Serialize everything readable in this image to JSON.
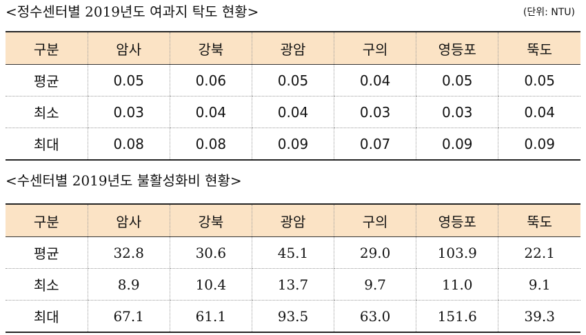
{
  "section1": {
    "title": "<정수센터별 2019년도 여과지 탁도 현황>",
    "unit": "(단위: NTU)",
    "headers": [
      "구분",
      "암사",
      "강북",
      "광암",
      "구의",
      "영등포",
      "뚝도"
    ],
    "rows": [
      [
        "평균",
        "0.05",
        "0.06",
        "0.05",
        "0.04",
        "0.05",
        "0.05"
      ],
      [
        "최소",
        "0.03",
        "0.04",
        "0.04",
        "0.03",
        "0.03",
        "0.04"
      ],
      [
        "최대",
        "0.08",
        "0.08",
        "0.09",
        "0.07",
        "0.09",
        "0.09"
      ]
    ]
  },
  "section2": {
    "title": "<수센터별 2019년도 불활성화비 현황>",
    "headers": [
      "구분",
      "암사",
      "강북",
      "광암",
      "구의",
      "영등포",
      "뚝도"
    ],
    "rows": [
      [
        "평균",
        "32.8",
        "30.6",
        "45.1",
        "29.0",
        "103.9",
        "22.1"
      ],
      [
        "최소",
        "8.9",
        "10.4",
        "13.7",
        "9.7",
        "11.0",
        "9.1"
      ],
      [
        "최대",
        "67.1",
        "61.1",
        "93.5",
        "63.0",
        "151.6",
        "39.3"
      ]
    ]
  }
}
